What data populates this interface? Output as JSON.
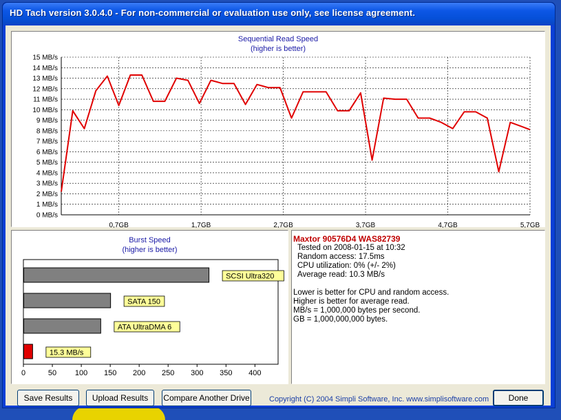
{
  "window": {
    "title": "HD Tach version 3.0.4.0  - For non-commercial or evaluation use only, see license agreement."
  },
  "colors": {
    "read_line": "#e00000",
    "burst_bar": "#808080",
    "burst_test_bar": "#e00000",
    "label_bg": "#ffff99",
    "title_blue": "#1a1aa6",
    "drive_name": "#c00000"
  },
  "read_panel": {
    "title": "Sequential Read Speed",
    "subtitle": "(higher is better)"
  },
  "burst_panel": {
    "title": "Burst Speed",
    "subtitle": "(higher is better)"
  },
  "info": {
    "drive_name": "Maxtor 90576D4 WAS82739",
    "tested_on": "Tested on 2008-01-15 at 10:32",
    "random_access": "Random access: 17.5ms",
    "cpu": "CPU utilization: 0% (+/- 2%)",
    "avg_read": "Average read: 10.3 MB/s",
    "note1": "Lower is better for CPU and random access.",
    "note2": "Higher is better for average read.",
    "note3": "MB/s = 1,000,000 bytes per second.",
    "note4": "GB = 1,000,000,000 bytes."
  },
  "buttons": {
    "save": "Save Results",
    "upload": "Upload Results",
    "compare": "Compare Another Drive",
    "done": "Done"
  },
  "copyright": "Copyright (C) 2004 Simpli Software, Inc. www.simplisoftware.com",
  "chart_data": [
    {
      "type": "line",
      "title": "Sequential Read Speed",
      "subtitle": "(higher is better)",
      "ylim": [
        0,
        15
      ],
      "xlim": [
        0,
        5.7
      ],
      "y_tick_labels": [
        "0 MB/s",
        "1 MB/s",
        "2 MB/s",
        "3 MB/s",
        "4 MB/s",
        "5 MB/s",
        "6 MB/s",
        "7 MB/s",
        "8 MB/s",
        "9 MB/s",
        "10 MB/s",
        "11 MB/s",
        "12 MB/s",
        "13 MB/s",
        "14 MB/s",
        "15 MB/s"
      ],
      "x_ticks": [
        0.7,
        1.7,
        2.7,
        3.7,
        4.7,
        5.7
      ],
      "x_tick_labels": [
        "0,7GB",
        "1,7GB",
        "2,7GB",
        "3,7GB",
        "4,7GB",
        "5,7GB"
      ],
      "grid": true,
      "series": [
        {
          "x": [
            0.0,
            0.14,
            0.28,
            0.42,
            0.56,
            0.7,
            0.84,
            0.98,
            1.12,
            1.26,
            1.4,
            1.54,
            1.68,
            1.82,
            1.96,
            2.1,
            2.24,
            2.38,
            2.52,
            2.66,
            2.8,
            2.94,
            3.08,
            3.22,
            3.36,
            3.5,
            3.64,
            3.78,
            3.92,
            4.06,
            4.2,
            4.34,
            4.48,
            4.62,
            4.76,
            4.9,
            5.04,
            5.18,
            5.32,
            5.46,
            5.6,
            5.7
          ],
          "y": [
            2.2,
            9.9,
            8.2,
            11.8,
            13.2,
            10.4,
            13.3,
            13.3,
            10.8,
            10.8,
            13.0,
            12.8,
            10.6,
            12.8,
            12.5,
            12.5,
            10.5,
            12.4,
            12.1,
            12.1,
            9.2,
            11.7,
            11.7,
            11.7,
            9.9,
            9.9,
            11.6,
            5.2,
            11.1,
            11.0,
            11.0,
            9.2,
            9.2,
            8.8,
            8.2,
            9.8,
            9.8,
            9.2,
            4.1,
            8.8,
            8.4,
            8.1
          ]
        }
      ]
    },
    {
      "type": "bar",
      "title": "Burst Speed",
      "subtitle": "(higher is better)",
      "orientation": "horizontal",
      "xlim": [
        0,
        440
      ],
      "x_ticks": [
        0,
        50,
        100,
        150,
        200,
        250,
        300,
        350,
        400
      ],
      "categories": [
        "SCSI Ultra320",
        "SATA 150",
        "ATA UltraDMA 6",
        "15.3 MB/s"
      ],
      "values": [
        320,
        150,
        133,
        15.3
      ],
      "grid": false
    }
  ]
}
